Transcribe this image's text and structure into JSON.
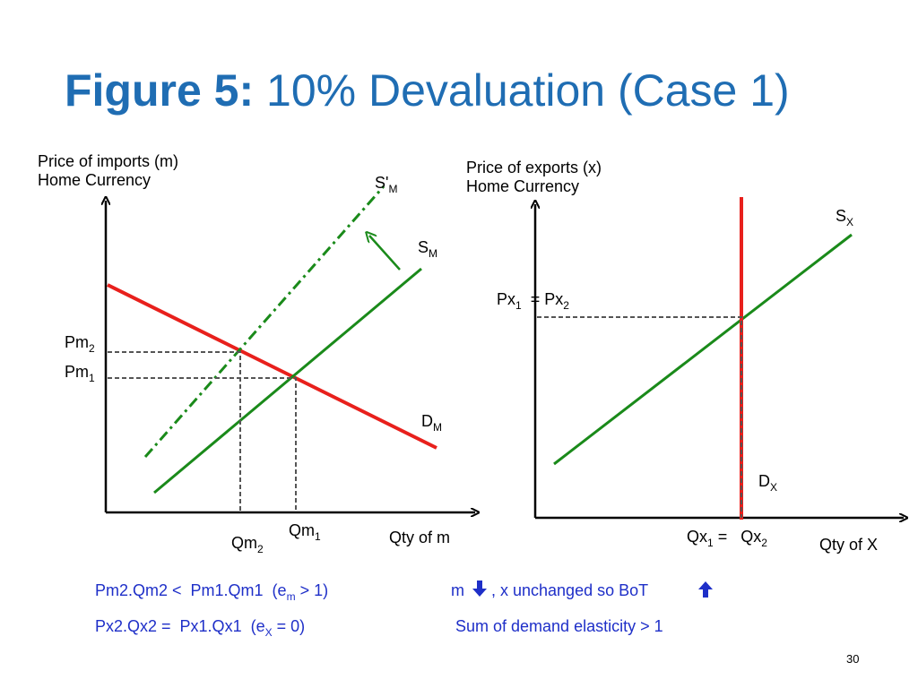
{
  "title": {
    "bold": "Figure 5:",
    "rest": "10% Devaluation (Case 1)"
  },
  "imports_diagram": {
    "y_axis_label": [
      "Price of imports (m)",
      "Home Currency"
    ],
    "x_axis_label": "Qty of m",
    "labels": {
      "s_prime_m": {
        "text": "S'",
        "sub": "M"
      },
      "s_m": {
        "text": "S",
        "sub": "M"
      },
      "d_m": {
        "text": "D",
        "sub": "M"
      },
      "pm2": {
        "text": "Pm",
        "sub": "2"
      },
      "pm1": {
        "text": "Pm",
        "sub": "1"
      },
      "qm1": {
        "text": "Qm",
        "sub": "1"
      },
      "qm2": {
        "text": "Qm",
        "sub": "2"
      }
    }
  },
  "exports_diagram": {
    "y_axis_label": [
      "Price of exports (x)",
      "Home Currency"
    ],
    "x_axis_label": "Qty of X",
    "labels": {
      "s_x": {
        "text": "S",
        "sub": "X"
      },
      "d_x": {
        "text": "D",
        "sub": "X"
      },
      "px": {
        "text": "Px",
        "sub": "1",
        "text2": "  = Px",
        "sub2": "2"
      },
      "qx": {
        "text": "Qx",
        "sub": "1",
        "text2": " =   Qx",
        "sub2": "2"
      }
    }
  },
  "notes": [
    {
      "text": "Pm2.Qm2 <  Pm1.Qm1  (e",
      "sub": "m",
      "after": " > 1)"
    },
    {
      "text": "m",
      "after": ", x unchanged so BoT"
    },
    {
      "text": "Px2.Qx2 =  Px1.Qx1  (e",
      "sub": "X",
      "after": " = 0)"
    },
    {
      "text": "Sum of demand elasticity > 1"
    }
  ],
  "page_number": "30"
}
